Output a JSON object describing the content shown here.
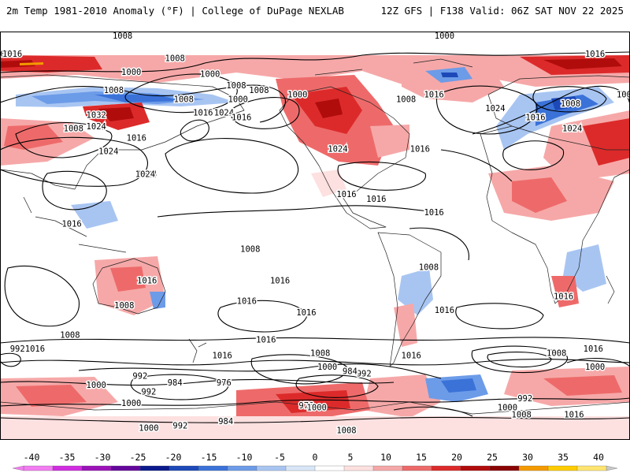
{
  "header": {
    "left": "2m Temp 1981-2010 Anomaly (°F) | College of DuPage NEXLAB",
    "right": "12Z GFS | F138 Valid: 06Z SAT NOV 22 2025"
  },
  "colorbar": {
    "ticks": [
      "-40",
      "-35",
      "-30",
      "-25",
      "-20",
      "-15",
      "-10",
      "-5",
      "0",
      "5",
      "10",
      "15",
      "20",
      "25",
      "30",
      "35",
      "40"
    ],
    "colors": [
      "#f27cf2",
      "#d02ce0",
      "#9b12b8",
      "#64079c",
      "#0a1a8c",
      "#1d49b8",
      "#3a72d8",
      "#6c9be8",
      "#a8c5f2",
      "#d8e6f8",
      "#ffffff",
      "#fde0e0",
      "#f6a8a8",
      "#ee6a6a",
      "#dc2a2a",
      "#b00c0c",
      "#8a0404",
      "#f49a00",
      "#ffcc00",
      "#ffe570"
    ]
  },
  "isobar_labels": [
    {
      "text": "1008",
      "lon": -160,
      "lat": 78
    },
    {
      "text": "1000",
      "lon": -140,
      "lat": 71
    },
    {
      "text": "1008",
      "lon": 170,
      "lat": 88
    },
    {
      "text": "1000",
      "lon": -6,
      "lat": 88
    },
    {
      "text": "1000",
      "lon": 175,
      "lat": 72
    },
    {
      "text": "1008",
      "lon": -125,
      "lat": 66
    },
    {
      "text": "1000",
      "lon": -124,
      "lat": 60
    },
    {
      "text": "1008",
      "lon": -155,
      "lat": 60
    },
    {
      "text": "1008",
      "lon": 165,
      "lat": 64
    },
    {
      "text": "1008",
      "lon": -112,
      "lat": 64
    },
    {
      "text": "1000",
      "lon": -90,
      "lat": 62
    },
    {
      "text": "1008",
      "lon": -28,
      "lat": 60
    },
    {
      "text": "1016",
      "lon": -12,
      "lat": 62
    },
    {
      "text": "1016",
      "lon": 80,
      "lat": 80
    },
    {
      "text": "1000",
      "lon": 98,
      "lat": 62
    },
    {
      "text": "1016",
      "lon": -144,
      "lat": 54
    },
    {
      "text": "1024",
      "lon": -132,
      "lat": 54
    },
    {
      "text": "1032",
      "lon": -205,
      "lat": 53
    },
    {
      "text": "1024",
      "lon": -198,
      "lat": 37
    },
    {
      "text": "1016",
      "lon": -182,
      "lat": 43
    },
    {
      "text": "1008",
      "lon": -218,
      "lat": 47
    },
    {
      "text": "1016",
      "lon": -122,
      "lat": 52
    },
    {
      "text": "1016",
      "lon": -20,
      "lat": 38
    },
    {
      "text": "1024",
      "lon": -176,
      "lat": 27
    },
    {
      "text": "1024",
      "lon": -67,
      "lat": 38
    },
    {
      "text": "1016",
      "lon": -62,
      "lat": 18
    },
    {
      "text": "1016",
      "lon": -12,
      "lat": 10
    },
    {
      "text": "1016",
      "lon": -45,
      "lat": 16
    },
    {
      "text": "1024",
      "lon": 23,
      "lat": 56
    },
    {
      "text": "1016",
      "lon": 46,
      "lat": 52
    },
    {
      "text": "1000",
      "lon": 103,
      "lat": 80
    },
    {
      "text": "1016",
      "lon": 107,
      "lat": 80
    },
    {
      "text": "1008",
      "lon": 66,
      "lat": 58
    },
    {
      "text": "1024",
      "lon": 67,
      "lat": 47
    },
    {
      "text": "1024",
      "lon": -177,
      "lat": 27
    },
    {
      "text": "1016",
      "lon": 141,
      "lat": 5
    },
    {
      "text": "1024",
      "lon": 155,
      "lat": 48
    },
    {
      "text": "1016",
      "lon": -176,
      "lat": -20
    },
    {
      "text": "1008",
      "lon": -117,
      "lat": -6
    },
    {
      "text": "1008",
      "lon": -189,
      "lat": -31
    },
    {
      "text": "1016",
      "lon": -119,
      "lat": -29
    },
    {
      "text": "1016",
      "lon": -108,
      "lat": -46
    },
    {
      "text": "1016",
      "lon": -85,
      "lat": -34
    },
    {
      "text": "1008",
      "lon": -220,
      "lat": -44
    },
    {
      "text": "1016",
      "lon": -240,
      "lat": -50
    },
    {
      "text": "1016",
      "lon": -133,
      "lat": -53
    },
    {
      "text": "1016",
      "lon": -100,
      "lat": -20
    },
    {
      "text": "1008",
      "lon": -15,
      "lat": -14
    },
    {
      "text": "1016",
      "lon": -6,
      "lat": -33
    },
    {
      "text": "1016",
      "lon": -25,
      "lat": -53
    },
    {
      "text": "1008",
      "lon": -77,
      "lat": -52
    },
    {
      "text": "1000",
      "lon": -73,
      "lat": -58
    },
    {
      "text": "1016",
      "lon": 62,
      "lat": -27
    },
    {
      "text": "1008",
      "lon": 58,
      "lat": -52
    },
    {
      "text": "1016",
      "lon": 79,
      "lat": -50
    },
    {
      "text": "992",
      "lon": 110,
      "lat": -50
    },
    {
      "text": "1000",
      "lon": 80,
      "lat": -58
    },
    {
      "text": "992",
      "lon": -52,
      "lat": -61
    },
    {
      "text": "984",
      "lon": -60,
      "lat": -60
    },
    {
      "text": "976",
      "lon": -132,
      "lat": -65
    },
    {
      "text": "992",
      "lon": -180,
      "lat": -62
    },
    {
      "text": "984",
      "lon": -160,
      "lat": -65
    },
    {
      "text": "1000",
      "lon": -205,
      "lat": -66
    },
    {
      "text": "992",
      "lon": -175,
      "lat": -69
    },
    {
      "text": "1000",
      "lon": -185,
      "lat": -74
    },
    {
      "text": "976",
      "lon": -85,
      "lat": -75
    },
    {
      "text": "1000",
      "lon": -79,
      "lat": -76
    },
    {
      "text": "984",
      "lon": -131,
      "lat": -82
    },
    {
      "text": "992",
      "lon": -157,
      "lat": -84
    },
    {
      "text": "1000",
      "lon": -175,
      "lat": -85
    },
    {
      "text": "1008",
      "lon": -62,
      "lat": -86
    },
    {
      "text": "1008",
      "lon": 38,
      "lat": -79
    },
    {
      "text": "1000",
      "lon": 30,
      "lat": -76
    },
    {
      "text": "992",
      "lon": 40,
      "lat": -72
    },
    {
      "text": "1016",
      "lon": 68,
      "lat": -79
    }
  ]
}
